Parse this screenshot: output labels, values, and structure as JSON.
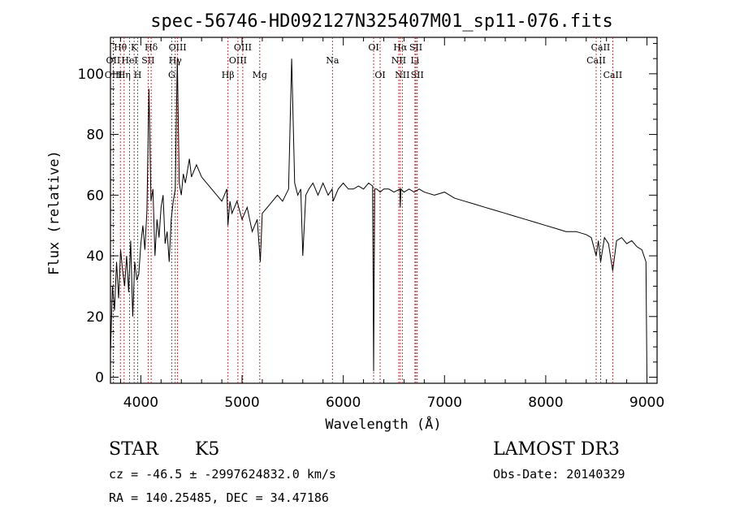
{
  "chart_data": {
    "type": "line",
    "title": "spec-56746-HD092127N325407M01_sp11-076.fits",
    "xlabel": "Wavelength (Å)",
    "ylabel": "Flux (relative)",
    "xlim": [
      3700,
      9100
    ],
    "ylim": [
      -2,
      112
    ],
    "xticks": [
      4000,
      5000,
      6000,
      7000,
      8000,
      9000
    ],
    "yticks": [
      0,
      20,
      40,
      60,
      80,
      100
    ],
    "grid": false,
    "series": [
      {
        "x": [
          3700,
          3720,
          3740,
          3760,
          3780,
          3800,
          3820,
          3840,
          3860,
          3880,
          3900,
          3920,
          3940,
          3960,
          3980,
          4000,
          4020,
          4040,
          4060,
          4080,
          4100,
          4120,
          4140,
          4160,
          4180,
          4200,
          4220,
          4240,
          4260,
          4280,
          4300,
          4320,
          4340,
          4360,
          4380,
          4400,
          4420,
          4440,
          4460,
          4480,
          4500,
          4550,
          4600,
          4650,
          4700,
          4750,
          4800,
          4850,
          4860,
          4880,
          4900,
          4950,
          5000,
          5050,
          5100,
          5150,
          5180,
          5200,
          5250,
          5300,
          5350,
          5400,
          5430,
          5460,
          5490,
          5520,
          5550,
          5580,
          5600,
          5630,
          5660,
          5700,
          5750,
          5800,
          5850,
          5890,
          5900,
          5950,
          6000,
          6050,
          6100,
          6150,
          6200,
          6250,
          6290,
          6300,
          6310,
          6330,
          6365,
          6400,
          6450,
          6500,
          6560,
          6563,
          6570,
          6600,
          6650,
          6700,
          6750,
          6800,
          6900,
          7000,
          7100,
          7200,
          7300,
          7400,
          7500,
          7600,
          7700,
          7800,
          7900,
          8000,
          8100,
          8200,
          8300,
          8400,
          8450,
          8498,
          8520,
          8542,
          8580,
          8620,
          8662,
          8700,
          8750,
          8800,
          8850,
          8900,
          8950,
          8990,
          9000
        ],
        "values": [
          8,
          30,
          22,
          38,
          26,
          42,
          35,
          30,
          40,
          28,
          45,
          20,
          38,
          32,
          34,
          44,
          50,
          42,
          55,
          95,
          58,
          62,
          40,
          52,
          46,
          56,
          60,
          44,
          48,
          38,
          52,
          58,
          62,
          105,
          64,
          60,
          67,
          64,
          68,
          72,
          66,
          70,
          66,
          64,
          62,
          60,
          58,
          62,
          50,
          58,
          54,
          58,
          52,
          56,
          48,
          52,
          38,
          54,
          56,
          58,
          60,
          58,
          60,
          62,
          105,
          64,
          60,
          62,
          40,
          60,
          62,
          64,
          60,
          64,
          60,
          62,
          58,
          62,
          64,
          62,
          62,
          63,
          62,
          64,
          63,
          2,
          62,
          62,
          61,
          62,
          62,
          61,
          62,
          56,
          62,
          61,
          62,
          61,
          62,
          61,
          60,
          61,
          59,
          58,
          57,
          56,
          55,
          54,
          53,
          52,
          51,
          50,
          49,
          48,
          48,
          47,
          46,
          40,
          45,
          38,
          46,
          44,
          35,
          45,
          46,
          44,
          45,
          43,
          42,
          38,
          0
        ]
      }
    ],
    "lines": [
      {
        "label": "Hθ",
        "x": 3798,
        "row": 1
      },
      {
        "label": "OII",
        "x": 3727,
        "row": 2
      },
      {
        "label": "OIII",
        "x": 3730,
        "row": 3
      },
      {
        "label": "Hη",
        "x": 3835,
        "row": 3
      },
      {
        "label": "HeI",
        "x": 3889,
        "row": 2
      },
      {
        "label": "K",
        "x": 3934,
        "row": 1
      },
      {
        "label": "SII",
        "x": 4072,
        "row": 2
      },
      {
        "label": "H",
        "x": 3969,
        "row": 3
      },
      {
        "label": "Hδ",
        "x": 4102,
        "row": 1
      },
      {
        "label": "OIII",
        "x": 4363,
        "row": 1
      },
      {
        "label": "Hγ",
        "x": 4340,
        "row": 2
      },
      {
        "label": "G",
        "x": 4305,
        "row": 3
      },
      {
        "label": "OIII",
        "x": 5007,
        "row": 1
      },
      {
        "label": "OIII",
        "x": 4959,
        "row": 2
      },
      {
        "label": "Hβ",
        "x": 4861,
        "row": 3
      },
      {
        "label": "Mg",
        "x": 5175,
        "row": 3
      },
      {
        "label": "Na",
        "x": 5893,
        "row": 2
      },
      {
        "label": "OI",
        "x": 6300,
        "row": 1
      },
      {
        "label": "OI",
        "x": 6364,
        "row": 3
      },
      {
        "label": "Hα",
        "x": 6563,
        "row": 1
      },
      {
        "label": "NII",
        "x": 6548,
        "row": 2
      },
      {
        "label": "NII",
        "x": 6583,
        "row": 3
      },
      {
        "label": "SII",
        "x": 6717,
        "row": 1
      },
      {
        "label": "Li",
        "x": 6708,
        "row": 2
      },
      {
        "label": "SII",
        "x": 6731,
        "row": 3
      },
      {
        "label": "CaII",
        "x": 8542,
        "row": 1
      },
      {
        "label": "CaII",
        "x": 8498,
        "row": 2
      },
      {
        "label": "CaII",
        "x": 8662,
        "row": 3
      }
    ]
  },
  "info": {
    "object_class": "STAR",
    "subclass": "K5",
    "survey": "LAMOST DR3",
    "cz": "cz = -46.5 ± -2997624832.0 km/s",
    "obs_date": "Obs-Date: 20140329",
    "radec": "RA = 140.25485, DEC =  34.47186"
  }
}
